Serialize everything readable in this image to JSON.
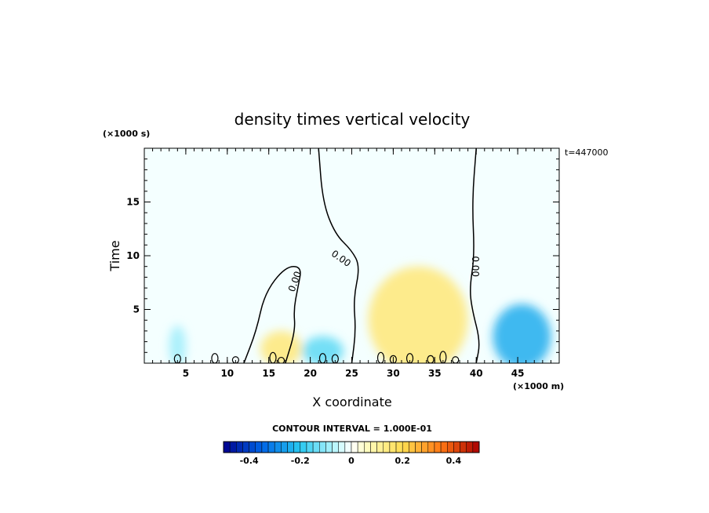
{
  "chart_data": {
    "type": "heatmap",
    "title": "density times vertical velocity",
    "xlabel": "X coordinate",
    "ylabel": "Time",
    "x_unit": "(×1000 m)",
    "y_unit": "(×1000 s)",
    "time_stamp": "t=447000",
    "xlim": [
      0,
      50
    ],
    "ylim": [
      0,
      20
    ],
    "x_ticks": [
      5,
      10,
      15,
      20,
      25,
      30,
      35,
      40,
      45
    ],
    "y_ticks": [
      5,
      10,
      15
    ],
    "contour_interval_text": "CONTOUR INTERVAL = 1.000E-01",
    "zero_contour_label": "0.00",
    "colorbar": {
      "min": -0.5,
      "max": 0.5,
      "ticks": [
        -0.4,
        -0.2,
        0,
        0.2,
        0.4
      ],
      "tick_labels": [
        "-0.4",
        "-0.2",
        "0",
        "0.2",
        "0.4"
      ]
    },
    "anomalies": [
      {
        "sign": "negative",
        "x": [
          3,
          5
        ],
        "y": [
          0,
          3.5
        ],
        "level": -0.03
      },
      {
        "sign": "negative",
        "x": [
          19,
          24
        ],
        "y": [
          0,
          2.5
        ],
        "level": -0.05
      },
      {
        "sign": "positive",
        "x": [
          14,
          19
        ],
        "y": [
          0,
          3
        ],
        "level": 0.05
      },
      {
        "sign": "positive",
        "x": [
          27,
          39
        ],
        "y": [
          0,
          9
        ],
        "level": 0.05
      },
      {
        "sign": "negative",
        "x": [
          42,
          49
        ],
        "y": [
          0,
          5.5
        ],
        "level": -0.08
      }
    ],
    "zero_contours": [
      {
        "x": [
          12,
          13.5,
          14.5,
          17,
          19,
          18.5,
          18,
          18.2,
          17
        ],
        "y": [
          0,
          3,
          6.5,
          9,
          9,
          7,
          5,
          3,
          0
        ]
      },
      {
        "x": [
          21,
          21.5,
          23,
          25,
          26,
          25.2,
          25.5,
          25
        ],
        "y": [
          20,
          15,
          12,
          10.5,
          9,
          6,
          3,
          0
        ]
      },
      {
        "x": [
          40,
          39.5,
          39.8,
          39.2,
          39.5,
          40.5,
          40
        ],
        "y": [
          20,
          15,
          10,
          7,
          5,
          2,
          0
        ]
      }
    ]
  }
}
